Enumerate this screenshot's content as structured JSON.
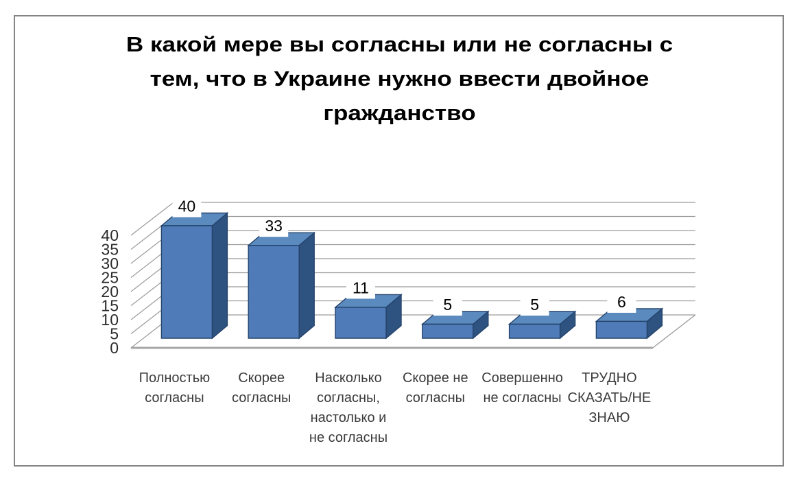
{
  "title": {
    "text": "В какой мере вы согласны или не согласны с тем, что в Украине нужно ввести двойное гражданство",
    "lines": [
      "В какой мере вы согласны или не согласны с",
      "тем, что в Украине нужно ввести двойное",
      "гражданство"
    ]
  },
  "chart_data": {
    "type": "bar",
    "style": "3d-column",
    "categories": [
      "Полностью согласны",
      "Скорее согласны",
      "Насколько согласны, настолько и не согласны",
      "Скорее не согласны",
      "Совершенно не согласны",
      "ТРУДНО СКАЗАТЬ/НЕ ЗНАЮ"
    ],
    "category_lines": [
      [
        "Полностью",
        "согласны"
      ],
      [
        "Скорее",
        "согласны"
      ],
      [
        "Насколько",
        "согласны,",
        "настолько и",
        "не согласны"
      ],
      [
        "Скорее не",
        "согласны"
      ],
      [
        "Совершенно",
        "не согласны"
      ],
      [
        "ТРУДНО",
        "СКАЗАТЬ/НЕ",
        "ЗНАЮ"
      ]
    ],
    "values": [
      40,
      33,
      11,
      5,
      5,
      6
    ],
    "yticks": [
      0,
      5,
      10,
      15,
      20,
      25,
      30,
      35,
      40
    ],
    "ylim": [
      0,
      40
    ],
    "grid": true,
    "legend": false,
    "xlabel": "",
    "ylabel": "",
    "colors": {
      "bar_front": "#4f7cb8",
      "bar_top": "#5b8abf",
      "bar_side": "#2e5380",
      "bar_outline": "#24436b",
      "gridline": "#9b9b9b",
      "floor_line": "#a6a6a6",
      "value_text": "#000000",
      "axis_text": "#2b2b2b",
      "category_text": "#3b3b3b",
      "background": "#ffffff",
      "border": "#848484"
    }
  }
}
